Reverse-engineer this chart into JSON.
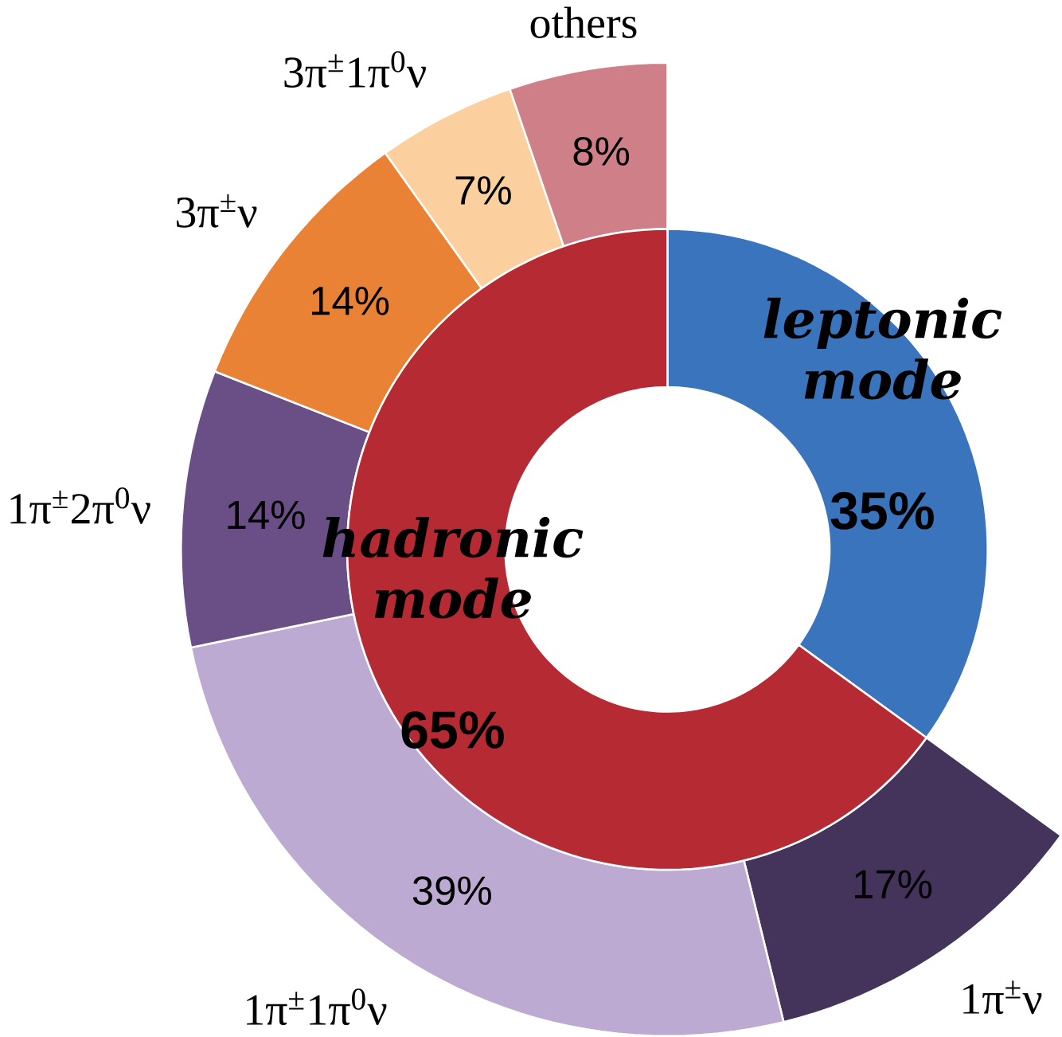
{
  "chart_data": [
    {
      "type": "donut",
      "categories": [
        "leptonic mode",
        "hadronic mode"
      ],
      "values": [
        35,
        65
      ],
      "colors": [
        "#3a74bd",
        "#b52a33"
      ],
      "value_labels": [
        "35%",
        "65%"
      ]
    },
    {
      "type": "donut",
      "categories": [
        "1π$^{±}$ν",
        "1π$^{±}$1π$^{0}$ν",
        "1π$^{±}$2π$^{0}$ν",
        "3π$^{±}$ν",
        "3π$^{±}$1π$^{0}$ν",
        "others"
      ],
      "values": [
        17,
        39,
        14,
        14,
        7,
        8
      ],
      "colors": [
        "#44345c",
        "#bcaad2",
        "#6a4f86",
        "#ea8236",
        "#fbcf9e",
        "#cf7f88"
      ],
      "value_labels": [
        "17%",
        "39%",
        "14%",
        "14%",
        "7%",
        "8%"
      ]
    }
  ]
}
